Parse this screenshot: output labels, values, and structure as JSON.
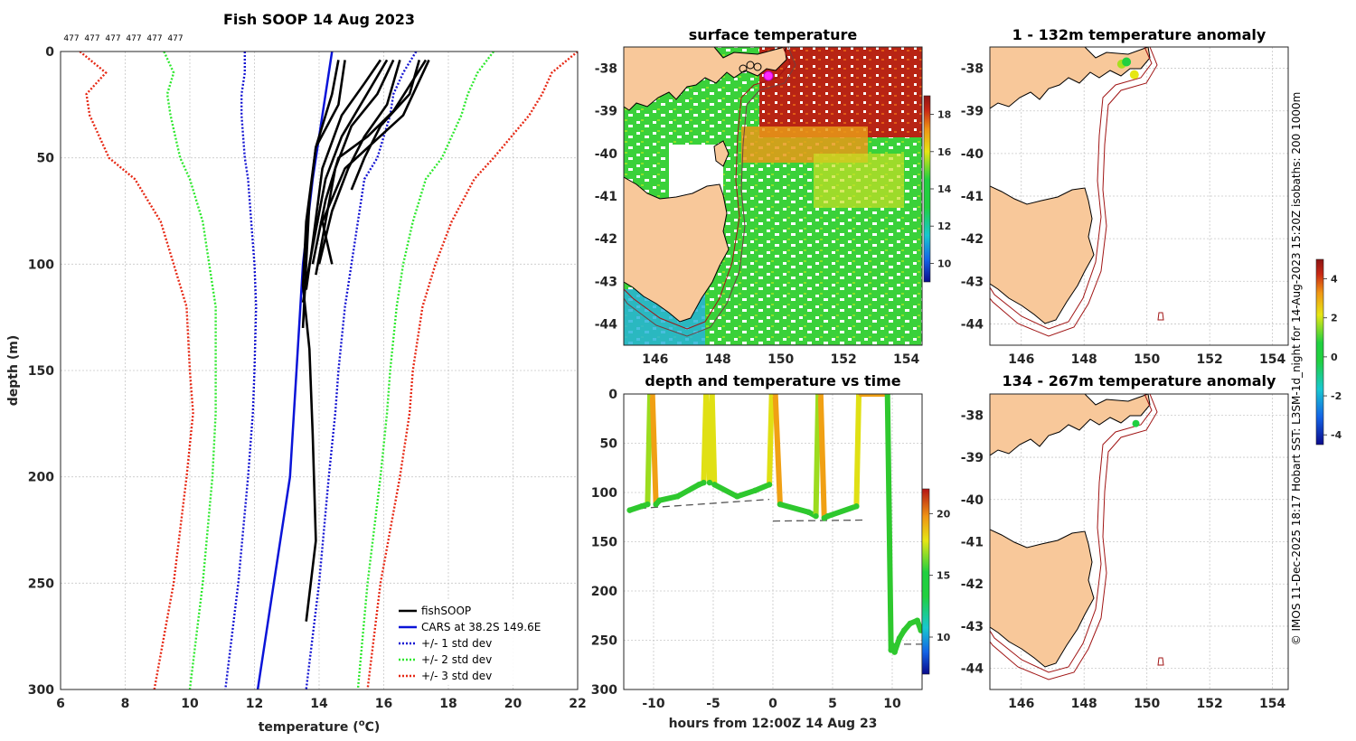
{
  "chart_data": [
    {
      "type": "line",
      "id": "profile",
      "title": "Fish SOOP 14 Aug 2023",
      "xlabel": "temperature (",
      "xlabel_sup": "o",
      "xlabel_end": "C)",
      "ylabel": "depth (m)",
      "xlim": [
        6,
        22
      ],
      "ylim": [
        0,
        300
      ],
      "xticks": [
        6,
        8,
        10,
        12,
        14,
        16,
        18,
        20,
        22
      ],
      "yticks": [
        0,
        50,
        100,
        150,
        200,
        250,
        300
      ],
      "top_labels": [
        "477",
        "477",
        "477",
        "477",
        "477",
        "477"
      ],
      "legend": [
        "fishSOOP",
        "CARS at 38.2S 149.6E",
        "+/- 1 std dev",
        "+/- 2 std dev",
        "+/- 3 std dev"
      ],
      "colors": {
        "fishsoop": "#000000",
        "cars": "#0a14d8",
        "std1": "#1414d2",
        "std2": "#2ee82e",
        "std3": "#e62814"
      },
      "cars": {
        "depth": [
          0,
          30,
          60,
          100,
          150,
          200,
          250,
          300
        ],
        "temp": [
          14.4,
          14.1,
          13.8,
          13.5,
          13.3,
          13.1,
          12.6,
          12.1
        ]
      },
      "std_depths": [
        0,
        10,
        20,
        30,
        50,
        60,
        80,
        100,
        120,
        150,
        170,
        200,
        250,
        300
      ],
      "std_minus1": [
        11.7,
        11.7,
        11.6,
        11.6,
        11.7,
        11.8,
        11.9,
        12.0,
        12.05,
        12.0,
        11.95,
        11.8,
        11.5,
        11.1
      ],
      "std_plus1": [
        17.0,
        16.6,
        16.3,
        16.2,
        15.8,
        15.4,
        15.2,
        15.0,
        14.8,
        14.6,
        14.5,
        14.3,
        14.0,
        13.6
      ],
      "std_minus2": [
        9.2,
        9.5,
        9.3,
        9.4,
        9.7,
        10.0,
        10.4,
        10.6,
        10.8,
        10.8,
        10.8,
        10.7,
        10.4,
        10.0
      ],
      "std_plus2": [
        19.4,
        18.9,
        18.6,
        18.4,
        17.8,
        17.3,
        16.9,
        16.6,
        16.4,
        16.2,
        16.1,
        15.9,
        15.5,
        15.2
      ],
      "std_minus3": [
        6.6,
        7.4,
        6.8,
        6.9,
        7.5,
        8.3,
        9.1,
        9.5,
        9.9,
        10.0,
        10.1,
        9.9,
        9.5,
        8.9
      ],
      "std_plus3": [
        22.0,
        21.2,
        20.9,
        20.5,
        19.4,
        18.8,
        18.1,
        17.6,
        17.2,
        16.9,
        16.8,
        16.5,
        15.9,
        15.5
      ],
      "fishsoop_profiles": [
        {
          "depth": [
            4,
            20,
            45,
            70,
            100,
            130
          ],
          "temp": [
            14.6,
            14.4,
            13.9,
            13.7,
            13.6,
            13.5
          ]
        },
        {
          "depth": [
            4,
            25,
            45,
            80,
            110,
            140,
            180,
            230,
            268
          ],
          "temp": [
            14.8,
            14.6,
            13.9,
            13.6,
            13.5,
            13.7,
            13.8,
            13.9,
            13.6
          ]
        },
        {
          "depth": [
            4,
            22,
            40,
            60,
            100,
            118
          ],
          "temp": [
            16.1,
            15.4,
            14.7,
            14.2,
            13.7,
            13.5
          ]
        },
        {
          "depth": [
            4,
            20,
            35,
            55,
            80,
            105
          ],
          "temp": [
            16.3,
            15.8,
            15.0,
            14.5,
            14.2,
            13.9
          ]
        },
        {
          "depth": [
            4,
            28,
            40,
            50,
            70,
            100
          ],
          "temp": [
            17.3,
            16.3,
            15.5,
            14.6,
            14.2,
            13.8
          ]
        },
        {
          "depth": [
            4,
            25,
            40,
            55,
            75,
            100
          ],
          "temp": [
            16.5,
            16.1,
            15.4,
            14.9,
            14.4,
            14.0
          ]
        },
        {
          "depth": [
            4,
            20,
            35,
            50,
            65
          ],
          "temp": [
            17.1,
            16.8,
            15.9,
            15.4,
            15.0
          ]
        },
        {
          "depth": [
            4,
            15,
            30,
            55,
            90,
            112
          ],
          "temp": [
            15.9,
            15.4,
            14.7,
            14.1,
            13.8,
            13.6
          ]
        },
        {
          "depth": [
            4,
            30,
            55,
            80,
            100
          ],
          "temp": [
            17.4,
            16.6,
            14.8,
            14.1,
            14.4
          ]
        }
      ]
    },
    {
      "type": "heatmap",
      "id": "sst",
      "title": "surface temperature",
      "xlim": [
        145,
        154.5
      ],
      "ylim": [
        -44.5,
        -37.5
      ],
      "xticks": [
        146,
        148,
        150,
        152,
        154
      ],
      "yticks": [
        -38,
        -39,
        -40,
        -41,
        -42,
        -43,
        -44
      ],
      "colorbar_ticks": [
        10,
        12,
        14,
        16,
        18
      ],
      "colorbar_range": [
        9,
        19
      ]
    },
    {
      "type": "scatter",
      "id": "depth_time",
      "title": "depth and temperature vs time",
      "xlabel": "hours from 12:00Z 14 Aug 23",
      "xlim": [
        -12.5,
        12.5
      ],
      "ylim": [
        0,
        300
      ],
      "xticks": [
        -10,
        -5,
        0,
        5,
        10
      ],
      "yticks": [
        0,
        50,
        100,
        150,
        200,
        250,
        300
      ],
      "colorbar_ticks": [
        10,
        15,
        20
      ],
      "colorbar_range": [
        7,
        22
      ],
      "trace": {
        "hours": [
          -12,
          -11.0,
          -10.5,
          -10.3,
          -10.1,
          -9.8,
          -9.5,
          -8,
          -6.2,
          -5.8,
          -5.6,
          -5.3,
          -5.1,
          -4.9,
          -3,
          -1.5,
          -0.3,
          -0.1,
          0.2,
          0.6,
          3,
          3.6,
          3.8,
          4.0,
          4.3,
          4.6,
          7,
          7.2,
          7.4,
          9.6,
          9.9,
          10.0,
          10.2,
          10.6,
          11.0,
          11.5,
          12.1,
          12.4
        ],
        "depth": [
          118,
          114,
          112,
          0,
          0,
          112,
          108,
          104,
          92,
          90,
          0,
          90,
          0,
          92,
          104,
          98,
          92,
          0,
          0,
          112,
          120,
          124,
          0,
          0,
          126,
          124,
          114,
          0,
          0,
          0,
          260,
          255,
          262,
          248,
          240,
          233,
          230,
          240
        ],
        "temp": [
          14,
          14,
          14,
          16,
          19,
          14,
          14,
          14,
          14,
          14,
          18,
          14,
          17,
          14,
          14,
          14,
          14,
          17,
          19,
          14,
          14,
          14,
          16,
          19,
          14,
          14,
          14,
          17,
          20,
          15,
          14,
          14,
          14,
          14,
          14,
          14,
          14,
          14
        ]
      },
      "dashed_segments": [
        {
          "hours": [
            -12.2,
            -0.3
          ],
          "depth": [
            117,
            107
          ]
        },
        {
          "hours": [
            0,
            7.6
          ],
          "depth": [
            129,
            128
          ]
        },
        {
          "hours": [
            10,
            12.5
          ],
          "depth": [
            254,
            254
          ]
        }
      ]
    },
    {
      "type": "scatter",
      "id": "anom1",
      "title": "1 - 132m temperature anomaly",
      "xlim": [
        145,
        154.5
      ],
      "ylim": [
        -44.5,
        -37.5
      ],
      "xticks": [
        146,
        148,
        150,
        152,
        154
      ],
      "yticks": [
        -38,
        -39,
        -40,
        -41,
        -42,
        -43,
        -44
      ],
      "points": [
        {
          "lon": 149.2,
          "lat": -37.9,
          "anom": 1.3
        },
        {
          "lon": 149.35,
          "lat": -37.85,
          "anom": 1.0
        },
        {
          "lon": 149.6,
          "lat": -38.15,
          "anom": 2.3
        }
      ]
    },
    {
      "type": "scatter",
      "id": "anom2",
      "title": "134 - 267m temperature anomaly",
      "xlim": [
        145,
        154.5
      ],
      "ylim": [
        -44.5,
        -37.5
      ],
      "xticks": [
        146,
        148,
        150,
        152,
        154
      ],
      "yticks": [
        -38,
        -39,
        -40,
        -41,
        -42,
        -43,
        -44
      ],
      "points": [
        {
          "lon": 149.65,
          "lat": -38.2,
          "anom": 0.5
        }
      ]
    }
  ],
  "anom_colorbar": {
    "ticks": [
      4,
      2,
      0,
      -2,
      -4
    ],
    "range": [
      -4.5,
      5
    ]
  },
  "side_note": "© IMOS 11-Dec-2025 18:17 Hobart SST: L3SM-1d_night for 14-Aug-2023 15:20Z isobaths: 200  1000m"
}
